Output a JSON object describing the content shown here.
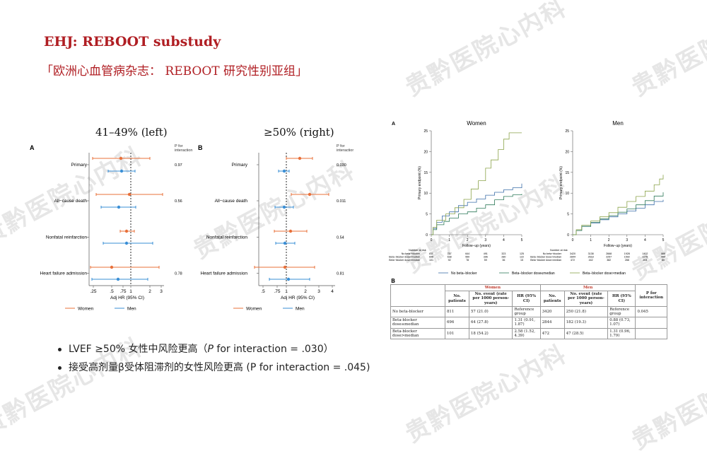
{
  "header": {
    "title": "EHJ: REBOOT substudy",
    "subtitle": "「欧洲心血管病杂志：  REBOOT 研究性别亚组」"
  },
  "watermark": "贵黔医院心内科",
  "forest": {
    "left_title": "41–49% (left)",
    "right_title": "≥50% (right)",
    "panel_a": "A",
    "panel_b": "B",
    "p_header_line1": "P for",
    "p_header_line2": "interaction",
    "outcomes": [
      "Primary",
      "All−cause death",
      "Nonfatal reinfarction",
      "Heart failure admission"
    ],
    "left_p": [
      "0.97",
      "0.56",
      "",
      "0.78"
    ],
    "right_p": [
      "0.030",
      "0.011",
      "0.54",
      "0.81"
    ],
    "left_ticks": [
      ".25",
      ".5",
      ".75",
      "1",
      "2",
      "3"
    ],
    "right_ticks": [
      ".5",
      ".75",
      "1",
      "2",
      "3",
      "4"
    ],
    "xlabel": "Adj HR (95% CI)",
    "legend_women": "Women",
    "legend_men": "Men",
    "colors": {
      "women": "#e8703a",
      "men": "#3a8fd6"
    }
  },
  "km": {
    "panel_a": "A",
    "panel_b": "B",
    "women_title": "Women",
    "men_title": "Men",
    "ylabel": "Primary endpoint (%)",
    "xlabel": "Follow−up (years)",
    "yticks": [
      "0",
      "5",
      "10",
      "15",
      "20",
      "25"
    ],
    "xticks": [
      "0",
      "1",
      "2",
      "3",
      "4",
      "5"
    ],
    "risk_header": "Number at risk",
    "risk_labels": [
      "No beta−blocker",
      "Beta−blocker dose<median",
      "Beta−blocker dose>median"
    ],
    "risk_women": [
      [
        "811",
        "757",
        "644",
        "491",
        "323",
        "125"
      ],
      [
        "696",
        "638",
        "550",
        "396",
        "280",
        "122"
      ],
      [
        "101",
        "92",
        "78",
        "59",
        "36",
        "15"
      ]
    ],
    "risk_men": [
      [
        "3420",
        "3138",
        "2668",
        "1928",
        "1402",
        "566"
      ],
      [
        "2844",
        "2618",
        "2257",
        "1592",
        "1175",
        "490"
      ],
      [
        "472",
        "442",
        "382",
        "288",
        "204",
        "80"
      ]
    ],
    "legend": [
      "No beta−blocker",
      "Beta−blocker dose≤median",
      "Beta−blocker dose>median"
    ],
    "colors": [
      "#3b6ea8",
      "#2f7a5a",
      "#8ba34a"
    ]
  },
  "table": {
    "women": "Women",
    "men": "Men",
    "h_patients": "No. patients",
    "h_event": "No. event (rate per 1000 person-years)",
    "h_hr": "HR (95% CI)",
    "h_p": "P for interaction",
    "rows": [
      {
        "label": "No beta-blocker",
        "wn": "811",
        "we": "57 (21.0)",
        "whr": "Reference group",
        "mn": "3420",
        "me": "250 (21.8)",
        "mhr": "Reference group",
        "p": "0.045"
      },
      {
        "label": "Beta-blocker dose≤median",
        "wn": "696",
        "we": "64 (27.8)",
        "whr": "1.31 (0.91, 1.87)",
        "mn": "2844",
        "me": "182 (19.3)",
        "mhr": "0.88 (0.73, 1.07)",
        "p": ""
      },
      {
        "label": "Beta-blocker dose>median",
        "wn": "101",
        "we": "18 (54.2)",
        "whr": "2.58 (1.52, 4.39)",
        "mn": "472",
        "me": "47 (28.5)",
        "mhr": "1.31 (0.96, 1.79)",
        "p": ""
      }
    ]
  },
  "bullets": {
    "b1_pre": "LVEF ≥50% 女性中风险更高（",
    "b1_p": "P",
    "b1_post": " for interaction = .030）",
    "b2": "接受高剂量β受体阻滞剂的女性风险更高 (P for interaction = .045)"
  }
}
